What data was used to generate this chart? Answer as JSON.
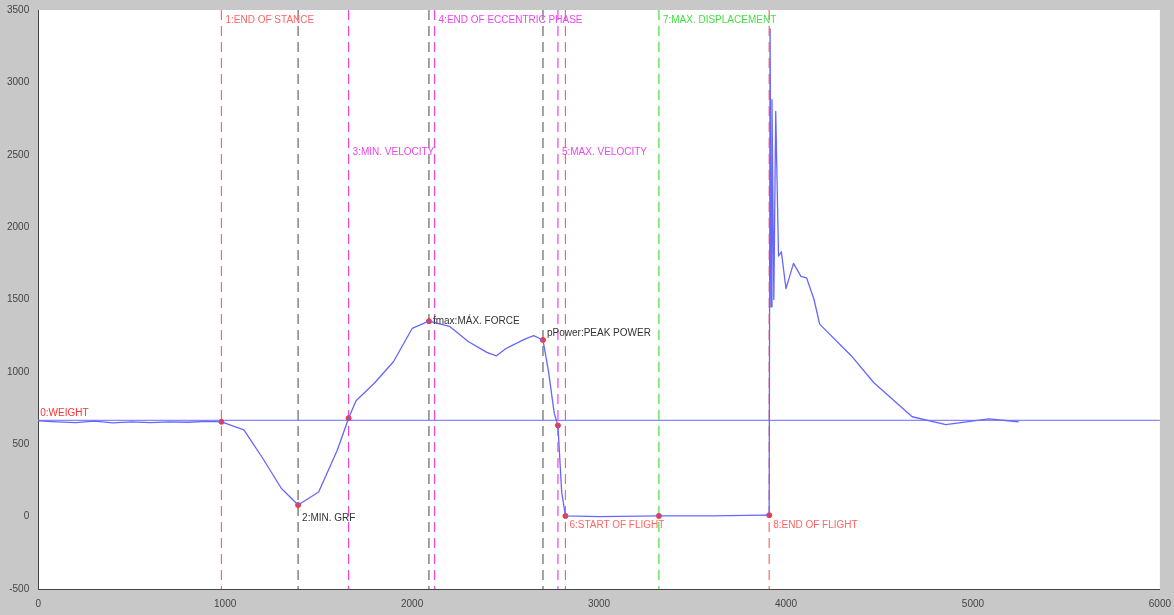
{
  "chart_data": {
    "type": "line",
    "xlim": [
      0,
      6000
    ],
    "xticks": [
      0,
      1000,
      2000,
      3000,
      4000,
      5000,
      6000
    ],
    "ylim": [
      -500,
      3500
    ],
    "yticks": [
      -500,
      0,
      500,
      1000,
      1500,
      2000,
      2500,
      3000,
      3500
    ],
    "grid": false,
    "legend": false,
    "marker": "none",
    "line_style": "solid",
    "series": [
      {
        "color": "#6666ff",
        "x": [
          0,
          100,
          200,
          300,
          400,
          500,
          600,
          700,
          800,
          900,
          980,
          1100,
          1200,
          1300,
          1390,
          1500,
          1600,
          1660,
          1700,
          1800,
          1900,
          2000,
          2090,
          2200,
          2300,
          2400,
          2450,
          2500,
          2600,
          2650,
          2700,
          2730,
          2760,
          2780,
          2800,
          2820,
          3000,
          3320,
          3600,
          3900,
          3910,
          3915,
          3920,
          3925,
          3935,
          3945,
          3960,
          3975,
          4000,
          4040,
          4080,
          4110,
          4150,
          4180,
          4350,
          4470,
          4675,
          4855,
          5085,
          5245
        ],
        "values": [
          662,
          655,
          650,
          660,
          648,
          655,
          650,
          655,
          652,
          658,
          655,
          600,
          405,
          196,
          80,
          170,
          460,
          680,
          800,
          925,
          1070,
          1300,
          1350,
          1315,
          1210,
          1135,
          1110,
          1160,
          1225,
          1250,
          1220,
          1000,
          715,
          630,
          170,
          5,
          0,
          5,
          5,
          10,
          10,
          3370,
          1450,
          2880,
          1500,
          2800,
          1800,
          1830,
          1575,
          1750,
          1660,
          1650,
          1500,
          1330,
          1110,
          925,
          690,
          635,
          675,
          655
        ]
      },
      {
        "type": "scatter",
        "marker": "circle",
        "color": "#ff3333",
        "x": [
          980,
          1390,
          1660,
          2090,
          2700,
          2780,
          2820,
          3320,
          3910
        ],
        "values": [
          655,
          80,
          680,
          1350,
          1220,
          630,
          5,
          5,
          10
        ]
      }
    ],
    "ref_lines": [
      {
        "axis": "y",
        "value": 665,
        "label": "0:WEIGHT",
        "color": "#8888ff",
        "line_style": "solid"
      },
      {
        "axis": "x",
        "value": 980,
        "color": "#ff6666",
        "line_style": "dashed"
      },
      {
        "axis": "x",
        "value": 1390,
        "color": "#666666",
        "line_style": "dashed"
      },
      {
        "axis": "x",
        "value": 1660,
        "color": "#ee44ee",
        "line_style": "dashed"
      },
      {
        "axis": "x",
        "value": 2090,
        "color": "#666666",
        "line_style": "dashed"
      },
      {
        "axis": "x",
        "value": 2120,
        "color": "#ee44ee",
        "line_style": "dashed"
      },
      {
        "axis": "x",
        "value": 2700,
        "color": "#666666",
        "line_style": "dashed"
      },
      {
        "axis": "x",
        "value": 2780,
        "color": "#ee44ee",
        "line_style": "dashed"
      },
      {
        "axis": "x",
        "value": 2820,
        "color": "#ff6666",
        "line_style": "dashed"
      },
      {
        "axis": "x",
        "value": 3320,
        "color": "#44dd44",
        "line_style": "dashed"
      },
      {
        "axis": "x",
        "value": 3910,
        "color": "#ff6666",
        "line_style": "dashed"
      }
    ],
    "annotations": [
      {
        "text": "1:END OF STANCE",
        "x": 980,
        "y": 3430
      },
      {
        "text": "2:MIN. GRF",
        "x": 1390,
        "y": -10
      },
      {
        "text": "3:MIN. VELOCITY",
        "x": 1660,
        "y": 2520
      },
      {
        "text": "fmax:MÁX. FORCE",
        "x": 2090,
        "y": 1350
      },
      {
        "text": "4:END OF ECCENTRIC PHASE",
        "x": 2120,
        "y": 3430
      },
      {
        "text": "pPower:PEAK POWER",
        "x": 2700,
        "y": 1270
      },
      {
        "text": "5:MAX. VELOCITY",
        "x": 2780,
        "y": 2520
      },
      {
        "text": "6:START OF FLIGHT",
        "x": 2820,
        "y": -60
      },
      {
        "text": "7:MAX. DISPLACEMENT",
        "x": 3320,
        "y": 3430
      },
      {
        "text": "8:END OF FLIGHT",
        "x": 3910,
        "y": -60
      }
    ]
  }
}
